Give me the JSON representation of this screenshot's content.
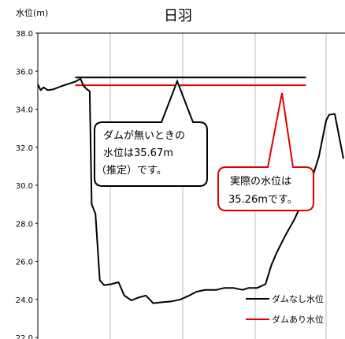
{
  "chart_data": {
    "type": "line",
    "title": "日羽",
    "ylabel": "水位(m)",
    "xlabel": "",
    "ylim": [
      22.0,
      38.0
    ],
    "yticks": [
      "38.0",
      "36.0",
      "34.0",
      "32.0",
      "30.0",
      "28.0",
      "26.0",
      "24.0",
      "22.0"
    ],
    "grid": "vertical gridlines",
    "legend_placement": "bottom-right",
    "series": [
      {
        "name": "ダムなし水位",
        "kind": "reference-line",
        "color": "#000000",
        "y": 35.67,
        "x_range": [
          0.13,
          0.93
        ]
      },
      {
        "name": "ダムあり水位",
        "kind": "reference-line",
        "color": "#e00000",
        "y": 35.26,
        "x_range": [
          0.13,
          0.93
        ]
      },
      {
        "name": "",
        "kind": "observed-line",
        "color": "#000000",
        "points": [
          [
            0.0,
            35.3
          ],
          [
            0.01,
            35.0
          ],
          [
            0.02,
            35.15
          ],
          [
            0.035,
            35.0
          ],
          [
            0.055,
            35.05
          ],
          [
            0.08,
            35.2
          ],
          [
            0.11,
            35.35
          ],
          [
            0.13,
            35.45
          ],
          [
            0.148,
            35.6
          ],
          [
            0.155,
            35.35
          ],
          [
            0.16,
            35.2
          ],
          [
            0.17,
            35.05
          ],
          [
            0.18,
            34.95
          ],
          [
            0.187,
            29.0
          ],
          [
            0.2,
            28.5
          ],
          [
            0.215,
            25.0
          ],
          [
            0.23,
            24.75
          ],
          [
            0.255,
            24.8
          ],
          [
            0.28,
            24.9
          ],
          [
            0.3,
            24.2
          ],
          [
            0.325,
            23.95
          ],
          [
            0.35,
            24.1
          ],
          [
            0.375,
            24.2
          ],
          [
            0.4,
            23.8
          ],
          [
            0.43,
            23.85
          ],
          [
            0.465,
            23.9
          ],
          [
            0.495,
            24.0
          ],
          [
            0.525,
            24.2
          ],
          [
            0.55,
            24.4
          ],
          [
            0.58,
            24.5
          ],
          [
            0.62,
            24.5
          ],
          [
            0.645,
            24.6
          ],
          [
            0.68,
            24.6
          ],
          [
            0.71,
            24.5
          ],
          [
            0.73,
            24.6
          ],
          [
            0.76,
            24.6
          ],
          [
            0.775,
            24.7
          ],
          [
            0.79,
            24.8
          ],
          [
            0.81,
            25.8
          ],
          [
            0.83,
            26.5
          ],
          [
            0.86,
            27.4
          ],
          [
            0.89,
            28.2
          ],
          [
            0.92,
            29.2
          ],
          [
            0.95,
            30.3
          ],
          [
            0.975,
            31.5
          ],
          [
            1.0,
            33.4
          ],
          [
            1.01,
            33.7
          ],
          [
            1.03,
            33.75
          ],
          [
            1.06,
            31.4
          ]
        ]
      }
    ],
    "annotations": [
      {
        "name": "no-dam",
        "lines": [
          "ダムが無いときの",
          "水位は35.67m",
          "（推定）です。"
        ],
        "border_color": "#000000"
      },
      {
        "name": "actual",
        "lines": [
          "実際の水位は",
          "35.26mです。"
        ],
        "border_color": "#e00000"
      }
    ]
  }
}
